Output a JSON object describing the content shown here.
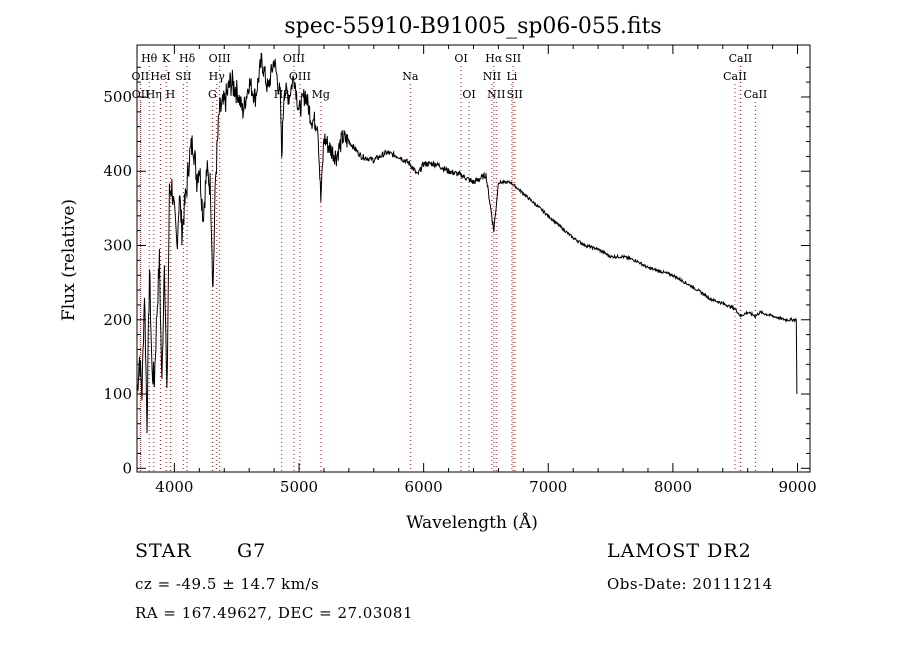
{
  "chart_data": {
    "type": "line",
    "title": "spec-55910-B91005_sp06-055.fits",
    "xlabel": "Wavelength (Å)",
    "ylabel": "Flux (relative)",
    "xlim": [
      3700,
      9100
    ],
    "ylim": [
      -5,
      570
    ],
    "xticks": [
      4000,
      5000,
      6000,
      7000,
      8000,
      9000
    ],
    "yticks": [
      0,
      100,
      200,
      300,
      400,
      500
    ],
    "grid": false,
    "line_color": "#000000",
    "marker_color": "#cc0000",
    "series": [
      {
        "x": [
          3700,
          3720,
          3740,
          3760,
          3780,
          3800,
          3820,
          3840,
          3860,
          3880,
          3900,
          3920,
          3940,
          3960,
          3980,
          4000,
          4020,
          4040,
          4060,
          4080,
          4100,
          4120,
          4150,
          4180,
          4200,
          4230,
          4260,
          4290,
          4310,
          4330,
          4360,
          4400,
          4450,
          4500,
          4550,
          4600,
          4650,
          4700,
          4750,
          4800,
          4850,
          4861,
          4880,
          4920,
          4960,
          5000,
          5050,
          5100,
          5150,
          5175,
          5200,
          5250,
          5300,
          5350,
          5400,
          5500,
          5600,
          5700,
          5800,
          5890,
          5950,
          6000,
          6100,
          6200,
          6300,
          6400,
          6500,
          6563,
          6600,
          6700,
          6800,
          6900,
          7000,
          7100,
          7200,
          7300,
          7400,
          7500,
          7600,
          7700,
          7800,
          7900,
          8000,
          8100,
          8200,
          8300,
          8400,
          8498,
          8542,
          8600,
          8662,
          8700,
          8800,
          8900,
          8990,
          8995
        ],
        "y": [
          100,
          150,
          100,
          240,
          60,
          270,
          130,
          120,
          210,
          280,
          110,
          290,
          90,
          370,
          380,
          340,
          300,
          370,
          320,
          350,
          380,
          420,
          440,
          390,
          410,
          340,
          400,
          380,
          240,
          390,
          480,
          490,
          520,
          510,
          480,
          520,
          500,
          550,
          510,
          550,
          500,
          420,
          510,
          500,
          530,
          480,
          505,
          470,
          465,
          360,
          445,
          430,
          420,
          445,
          440,
          420,
          415,
          425,
          420,
          410,
          395,
          410,
          410,
          400,
          395,
          385,
          395,
          320,
          385,
          385,
          370,
          355,
          340,
          325,
          310,
          300,
          295,
          285,
          285,
          280,
          270,
          265,
          260,
          250,
          240,
          228,
          222,
          215,
          205,
          210,
          205,
          210,
          205,
          200,
          200,
          100
        ]
      }
    ],
    "lines": [
      {
        "label": "Hθ",
        "x": 3798,
        "row": 1
      },
      {
        "label": "K",
        "x": 3934,
        "row": 1
      },
      {
        "label": "Hδ",
        "x": 4102,
        "row": 1
      },
      {
        "label": "OIII",
        "x": 4363,
        "row": 1
      },
      {
        "label": "OIII",
        "x": 4959,
        "row": 1
      },
      {
        "label": "OI",
        "x": 6300,
        "row": 1
      },
      {
        "label": "Hα",
        "x": 6563,
        "row": 1
      },
      {
        "label": "SII",
        "x": 6717,
        "row": 1
      },
      {
        "label": "CaII",
        "x": 8542,
        "row": 1
      },
      {
        "label": "OII",
        "x": 3727,
        "row": 2
      },
      {
        "label": "HeI",
        "x": 3889,
        "row": 2
      },
      {
        "label": "SII",
        "x": 4072,
        "row": 2
      },
      {
        "label": "Hγ",
        "x": 4340,
        "row": 2
      },
      {
        "label": "OIII",
        "x": 5007,
        "row": 2
      },
      {
        "label": "Na",
        "x": 5893,
        "row": 2
      },
      {
        "label": "NII",
        "x": 6548,
        "row": 2
      },
      {
        "label": "Li",
        "x": 6708,
        "row": 2
      },
      {
        "label": "CaII",
        "x": 8498,
        "row": 2
      },
      {
        "label": "OII",
        "x": 3729,
        "row": 3
      },
      {
        "label": "Hη",
        "x": 3835,
        "row": 3
      },
      {
        "label": "H",
        "x": 3968,
        "row": 3
      },
      {
        "label": "G",
        "x": 4305,
        "row": 3
      },
      {
        "label": "Hβ",
        "x": 4861,
        "row": 3
      },
      {
        "label": "Mg",
        "x": 5175,
        "row": 3
      },
      {
        "label": "OI",
        "x": 6364,
        "row": 3
      },
      {
        "label": "NII",
        "x": 6583,
        "row": 3
      },
      {
        "label": "SII",
        "x": 6731,
        "row": 3
      },
      {
        "label": "CaII",
        "x": 8662,
        "row": 3
      }
    ]
  },
  "info": {
    "object_class": "STAR",
    "subclass": "G7",
    "survey": "LAMOST DR2",
    "redshift": "cz = -49.5 ± 14.7 km/s",
    "obs_date": "Obs-Date: 20111214",
    "coords": "RA = 167.49627, DEC =  27.03081"
  }
}
